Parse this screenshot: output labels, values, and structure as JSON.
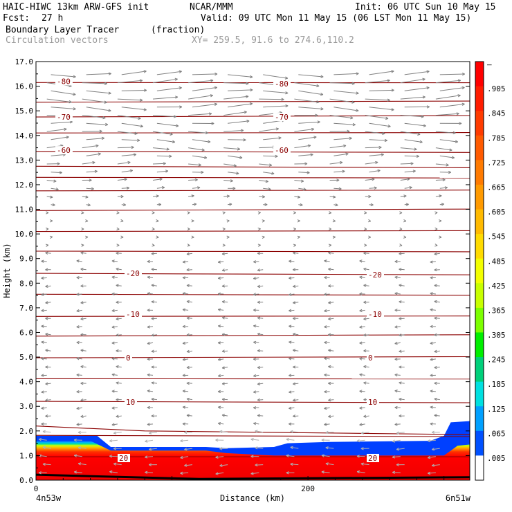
{
  "header": {
    "model": "HAIC-HIWC 13km ARW-GFS init",
    "org": "NCAR/MMM",
    "init": "Init: 06 UTC Sun 10 May 15",
    "fcst_label": "Fcst:",
    "fcst_value": "27 h",
    "valid": "Valid: 09 UTC Mon 11 May 15 (06 LST Mon 11 May 15)",
    "field": "Boundary Layer Tracer",
    "units": "(fraction)",
    "vectors": "Circulation vectors",
    "xy": "XY= 259.5, 91.6 to 274.6,110.2"
  },
  "chart_data": {
    "type": "heatmap",
    "xlabel": "Distance (km)",
    "ylabel": "Height (km)",
    "xlim": [
      0,
      319
    ],
    "ylim": [
      0.0,
      17.0
    ],
    "y_ticks": [
      "0.0",
      "1.0",
      "2.0",
      "3.0",
      "4.0",
      "5.0",
      "6.0",
      "7.0",
      "8.0",
      "9.0",
      "10.0",
      "11.0",
      "12.0",
      "13.0",
      "14.0",
      "15.0",
      "16.0",
      "17.0"
    ],
    "x_ticks": [
      "0",
      "200"
    ],
    "x_end_labels": [
      "4n53w",
      "6n51w"
    ],
    "colorbar": {
      "labels": [
        "–",
        ".905",
        ".845",
        ".785",
        ".725",
        ".665",
        ".605",
        ".545",
        ".485",
        ".425",
        ".365",
        ".305",
        ".245",
        ".185",
        ".125",
        ".065",
        ".005"
      ],
      "colors": [
        "#ff0000",
        "#ff1c00",
        "#ff3b00",
        "#ff5a00",
        "#ff7a00",
        "#ff9a00",
        "#ffba00",
        "#ffdb00",
        "#f3ff00",
        "#c8ff00",
        "#7cff00",
        "#00ef00",
        "#00d07a",
        "#00e0e0",
        "#00a0ff",
        "#0050ff",
        "#ffffff"
      ]
    },
    "contour_labels": [
      {
        "text": "-80",
        "x": 30,
        "y": 16.2
      },
      {
        "text": "-80",
        "x": 345,
        "y": 16.1
      },
      {
        "text": "-70",
        "x": 30,
        "y": 14.75
      },
      {
        "text": "-70",
        "x": 345,
        "y": 14.75
      },
      {
        "text": "-60",
        "x": 30,
        "y": 13.4
      },
      {
        "text": "-60",
        "x": 345,
        "y": 13.4
      },
      {
        "text": "-20",
        "x": 130,
        "y": 8.4
      },
      {
        "text": "-20",
        "x": 480,
        "y": 8.35
      },
      {
        "text": "-10",
        "x": 130,
        "y": 6.75
      },
      {
        "text": "-10",
        "x": 480,
        "y": 6.75
      },
      {
        "text": "0",
        "x": 130,
        "y": 4.98
      },
      {
        "text": "0",
        "x": 480,
        "y": 4.98
      },
      {
        "text": "10",
        "x": 130,
        "y": 3.18
      },
      {
        "text": "10",
        "x": 480,
        "y": 3.18
      },
      {
        "text": "20",
        "x": 120,
        "y": 0.9
      },
      {
        "text": "20",
        "x": 480,
        "y": 0.9
      }
    ]
  }
}
